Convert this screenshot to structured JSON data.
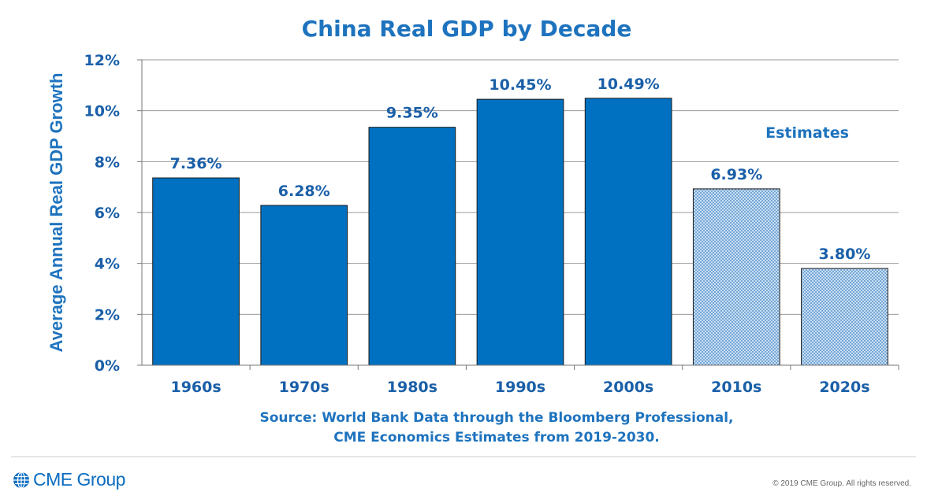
{
  "chart_data": {
    "type": "bar",
    "title": "China Real GDP by Decade",
    "ylabel": "Average Annual Real GDP Growth",
    "xlabel": "",
    "ylim": [
      0,
      12
    ],
    "yticks": [
      0,
      2,
      4,
      6,
      8,
      10,
      12
    ],
    "ytick_labels": [
      "0%",
      "2%",
      "4%",
      "6%",
      "8%",
      "10%",
      "12%"
    ],
    "categories": [
      "1960s",
      "1970s",
      "1980s",
      "1990s",
      "2000s",
      "2010s",
      "2020s"
    ],
    "values": [
      7.36,
      6.28,
      9.35,
      10.45,
      10.49,
      6.93,
      3.8
    ],
    "value_labels": [
      "7.36%",
      "6.28%",
      "9.35%",
      "10.45%",
      "10.49%",
      "6.93%",
      "3.80%"
    ],
    "estimated": [
      false,
      false,
      false,
      false,
      false,
      true,
      true
    ],
    "annotation": "Estimates",
    "grid": true,
    "colors": {
      "actual": "#0070c0",
      "estimate_fill": "#c9dff2",
      "estimate_dots": "#3a7fc4",
      "text": "#1e73be"
    }
  },
  "source_lines": [
    "Source: World Bank Data through the Bloomberg Professional,",
    "CME Economics Estimates from 2019-2030."
  ],
  "footer": {
    "brand": "CME Group",
    "copyright": "© 2019 CME Group. All rights reserved."
  }
}
